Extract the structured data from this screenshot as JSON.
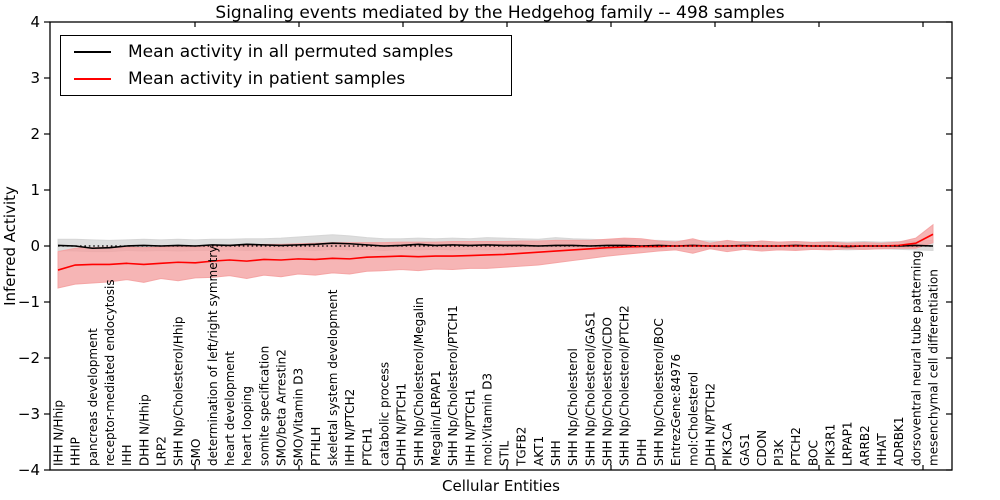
{
  "chart_data": {
    "type": "line",
    "title": "Signaling events mediated by the Hedgehog family -- 498 samples",
    "xlabel": "Cellular Entities",
    "ylabel": "Inferred Activity",
    "ylim": [
      -4,
      4
    ],
    "yticks": [
      4,
      3,
      2,
      1,
      0,
      -1,
      -2,
      -3,
      -4
    ],
    "yticklabels": [
      "4",
      "3",
      "2",
      "1",
      "0",
      "−1",
      "−2",
      "−3",
      "−4"
    ],
    "grid": false,
    "zero_reference_line": true,
    "legend_position": "upper left",
    "categories": [
      "IHH N/Hhip",
      "HHIP",
      "pancreas development",
      "receptor-mediated endocytosis",
      "IHH",
      "DHH N/Hhip",
      "LRP2",
      "SHH Np/Cholesterol/Hhip",
      "SMO",
      "determination of left/right symmetry",
      "heart development",
      "heart looping",
      "somite specification",
      "SMO/beta Arrestin2",
      "SMO/Vitamin D3",
      "PTHLH",
      "skeletal system development",
      "IHH N/PTCH2",
      "PTCH1",
      "catabolic process",
      "DHH N/PTCH1",
      "SHH Np/Cholesterol/Megalin",
      "Megalin/LRPAP1",
      "SHH Np/Cholesterol/PTCH1",
      "IHH N/PTCH1",
      "mol:Vitamin D3",
      "STIL",
      "TGFB2",
      "AKT1",
      "SHH",
      "SHH Np/Cholesterol",
      "SHH Np/Cholesterol/GAS1",
      "SHH Np/Cholesterol/CDO",
      "SHH Np/Cholesterol/PTCH2",
      "DHH",
      "SHH Np/Cholesterol/BOC",
      "EntrezGene:84976",
      "mol:Cholesterol",
      "DHH N/PTCH2",
      "PIK3CA",
      "GAS1",
      "CDON",
      "PI3K",
      "PTCH2",
      "BOC",
      "PIK3R1",
      "LRPAP1",
      "ARRB2",
      "HHAT",
      "ADRBK1",
      "dorsoventral neural tube patterning",
      "mesenchymal cell differentiation"
    ],
    "series": [
      {
        "name": "Mean activity in all permuted samples",
        "color": "#000000",
        "band_color": "#d4d4d4",
        "values": [
          0.01,
          0.0,
          -0.04,
          -0.03,
          0.0,
          0.01,
          0.0,
          0.01,
          0.0,
          0.02,
          0.01,
          0.03,
          0.02,
          0.01,
          0.02,
          0.03,
          0.05,
          0.04,
          0.02,
          0.0,
          0.01,
          0.03,
          0.01,
          0.02,
          0.01,
          0.02,
          0.01,
          0.01,
          0.0,
          0.01,
          0.01,
          0.0,
          0.01,
          0.01,
          0.0,
          0.01,
          0.0,
          0.01,
          0.0,
          0.0,
          0.01,
          0.0,
          0.0,
          0.01,
          0.0,
          0.0,
          -0.01,
          0.0,
          0.0,
          0.0,
          0.01,
          0.0
        ],
        "band_lower": [
          -0.08,
          -0.09,
          -0.1,
          -0.1,
          -0.08,
          -0.09,
          -0.08,
          -0.09,
          -0.08,
          -0.08,
          -0.07,
          -0.08,
          -0.07,
          -0.08,
          -0.07,
          -0.08,
          -0.06,
          -0.07,
          -0.06,
          -0.08,
          -0.06,
          -0.07,
          -0.06,
          -0.07,
          -0.06,
          -0.07,
          -0.06,
          -0.07,
          -0.06,
          -0.07,
          -0.06,
          -0.07,
          -0.06,
          -0.06,
          -0.05,
          -0.06,
          -0.05,
          -0.06,
          -0.05,
          -0.06,
          -0.05,
          -0.06,
          -0.05,
          -0.06,
          -0.05,
          -0.06,
          -0.07,
          -0.06,
          -0.05,
          -0.06,
          -0.07,
          -0.08
        ],
        "band_upper": [
          0.12,
          0.12,
          0.11,
          0.1,
          0.11,
          0.12,
          0.11,
          0.12,
          0.11,
          0.12,
          0.12,
          0.13,
          0.13,
          0.14,
          0.16,
          0.18,
          0.2,
          0.18,
          0.15,
          0.13,
          0.13,
          0.14,
          0.13,
          0.14,
          0.13,
          0.15,
          0.14,
          0.13,
          0.12,
          0.15,
          0.13,
          0.12,
          0.11,
          0.12,
          0.1,
          0.1,
          0.09,
          0.1,
          0.09,
          0.08,
          0.08,
          0.08,
          0.07,
          0.08,
          0.07,
          0.08,
          0.07,
          0.08,
          0.07,
          0.08,
          0.09,
          0.1
        ]
      },
      {
        "name": "Mean activity in patient samples",
        "color": "#ff0000",
        "band_color": "#f4a0a0",
        "values": [
          -0.43,
          -0.34,
          -0.33,
          -0.33,
          -0.31,
          -0.33,
          -0.31,
          -0.29,
          -0.3,
          -0.27,
          -0.25,
          -0.27,
          -0.24,
          -0.25,
          -0.23,
          -0.24,
          -0.22,
          -0.23,
          -0.2,
          -0.19,
          -0.18,
          -0.19,
          -0.18,
          -0.18,
          -0.17,
          -0.16,
          -0.15,
          -0.13,
          -0.11,
          -0.09,
          -0.07,
          -0.05,
          -0.03,
          -0.02,
          -0.01,
          -0.01,
          0.0,
          0.0,
          0.0,
          0.0,
          0.0,
          0.0,
          0.0,
          0.0,
          0.0,
          0.0,
          0.0,
          0.0,
          0.0,
          0.01,
          0.05,
          0.21
        ],
        "band_lower": [
          -0.75,
          -0.68,
          -0.66,
          -0.64,
          -0.6,
          -0.65,
          -0.58,
          -0.62,
          -0.57,
          -0.56,
          -0.53,
          -0.58,
          -0.52,
          -0.55,
          -0.5,
          -0.52,
          -0.48,
          -0.5,
          -0.45,
          -0.44,
          -0.42,
          -0.44,
          -0.41,
          -0.42,
          -0.4,
          -0.4,
          -0.38,
          -0.36,
          -0.34,
          -0.3,
          -0.26,
          -0.22,
          -0.18,
          -0.15,
          -0.12,
          -0.09,
          -0.07,
          -0.13,
          -0.05,
          -0.1,
          -0.06,
          -0.09,
          -0.07,
          -0.08,
          -0.06,
          -0.07,
          -0.05,
          -0.06,
          -0.05,
          -0.04,
          -0.04,
          0.06
        ],
        "band_upper": [
          -0.1,
          -0.04,
          -0.03,
          -0.02,
          -0.02,
          -0.03,
          -0.02,
          -0.01,
          -0.02,
          0.0,
          0.02,
          0.01,
          0.03,
          0.03,
          0.04,
          0.05,
          0.06,
          0.06,
          0.06,
          0.06,
          0.07,
          0.07,
          0.07,
          0.08,
          0.08,
          0.08,
          0.08,
          0.09,
          0.09,
          0.1,
          0.1,
          0.1,
          0.12,
          0.14,
          0.13,
          0.09,
          0.07,
          0.13,
          0.05,
          0.1,
          0.06,
          0.09,
          0.07,
          0.08,
          0.06,
          0.07,
          0.05,
          0.06,
          0.05,
          0.07,
          0.14,
          0.38
        ]
      }
    ]
  }
}
